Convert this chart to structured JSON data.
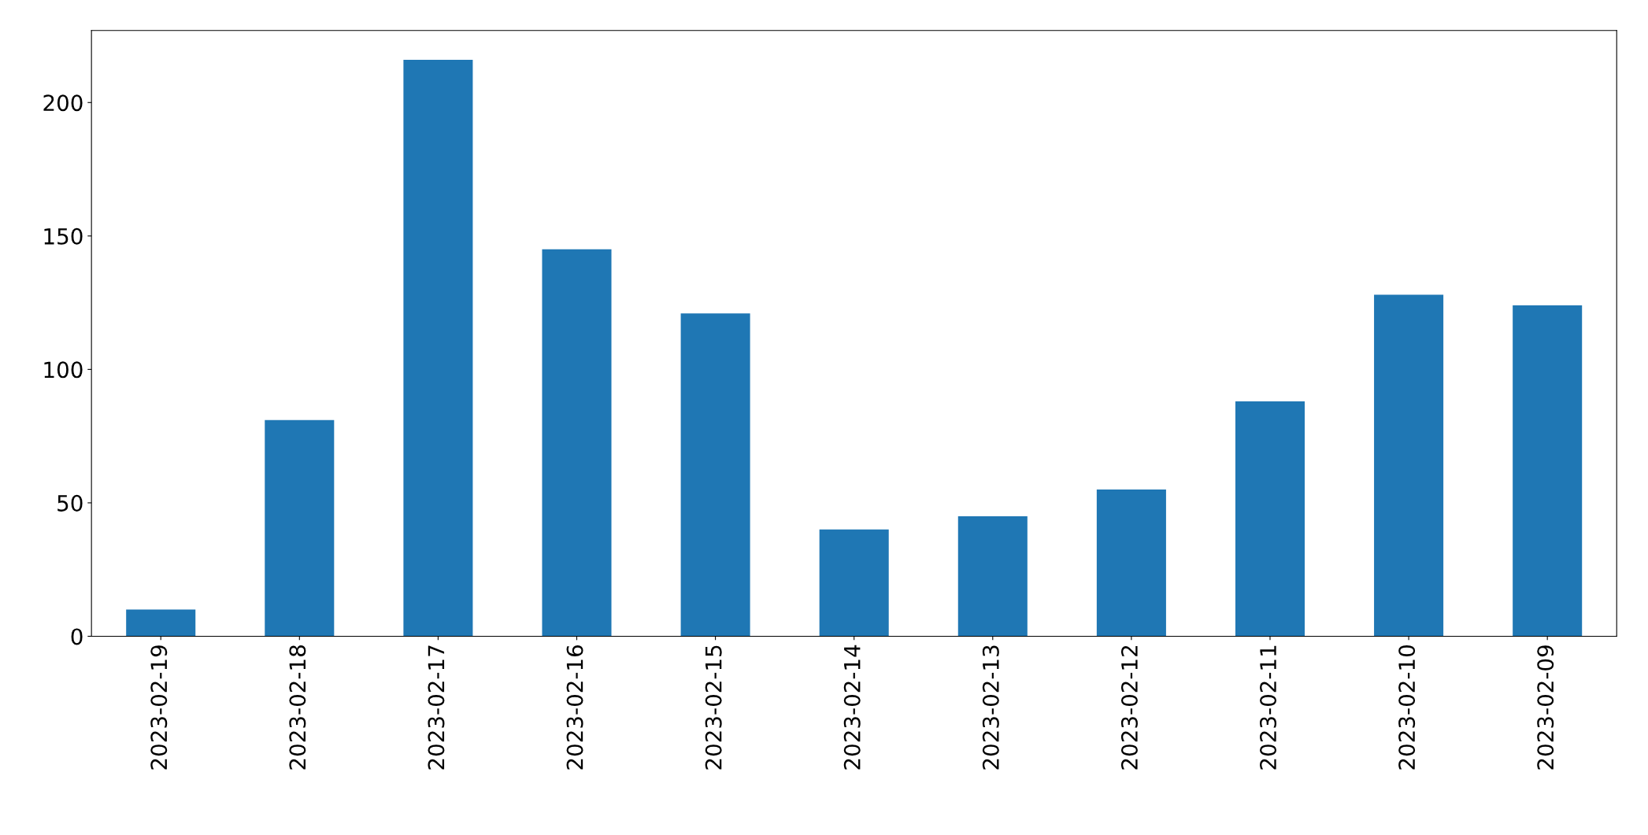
{
  "chart_data": {
    "type": "bar",
    "categories": [
      "2023-02-19",
      "2023-02-18",
      "2023-02-17",
      "2023-02-16",
      "2023-02-15",
      "2023-02-14",
      "2023-02-13",
      "2023-02-12",
      "2023-02-11",
      "2023-02-10",
      "2023-02-09"
    ],
    "values": [
      10,
      81,
      216,
      145,
      121,
      40,
      45,
      55,
      88,
      128,
      124
    ],
    "color": "#1f77b4",
    "ylim": [
      0,
      227
    ],
    "yticks": [
      0,
      50,
      100,
      150,
      200
    ],
    "grid": false,
    "legend": false
  }
}
